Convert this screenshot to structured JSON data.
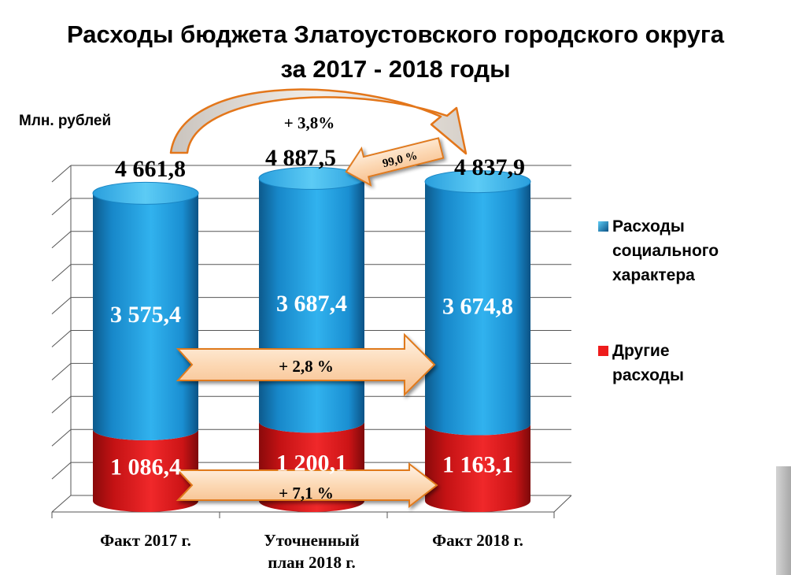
{
  "title_line1": "Расходы бюджета Златоустовского городского округа",
  "title_line2": "за 2017 - 2018 годы",
  "unit_label": "Млн. рублей",
  "chart_data": {
    "type": "bar",
    "stacked": true,
    "categories": [
      "Факт 2017 г.",
      "Уточненный план 2018 г.",
      "Факт 2018 г."
    ],
    "category_lines": [
      [
        "Факт 2017 г."
      ],
      [
        "Уточненный",
        "план 2018 г."
      ],
      [
        "Факт 2018 г."
      ]
    ],
    "series": [
      {
        "name": "Другие расходы",
        "legend_lines": [
          "Другие",
          "расходы"
        ],
        "color": "#e8191c",
        "values": [
          1086.4,
          1200.1,
          1163.1
        ],
        "labels": [
          "1 086,4",
          "1 200,1",
          "1 163,1"
        ]
      },
      {
        "name": "Расходы социального характера",
        "legend_lines": [
          "Расходы",
          "социального",
          "характера"
        ],
        "color": "#1f97d6",
        "values": [
          3575.4,
          3687.4,
          3674.8
        ],
        "labels": [
          "3 575,4",
          "3 687,4",
          "3 674,8"
        ]
      }
    ],
    "totals": [
      4661.8,
      4887.5,
      4837.9
    ],
    "total_labels": [
      "4 661,8",
      "4 887,5",
      "4 837,9"
    ],
    "ylim": [
      0,
      5000
    ],
    "gridlines": 10,
    "annotations": {
      "top_arrow": "+ 3,8%",
      "back_arrow": "99,0 %",
      "social_arrow": "+ 2,8 %",
      "other_arrow": "+ 7,1 %"
    }
  }
}
